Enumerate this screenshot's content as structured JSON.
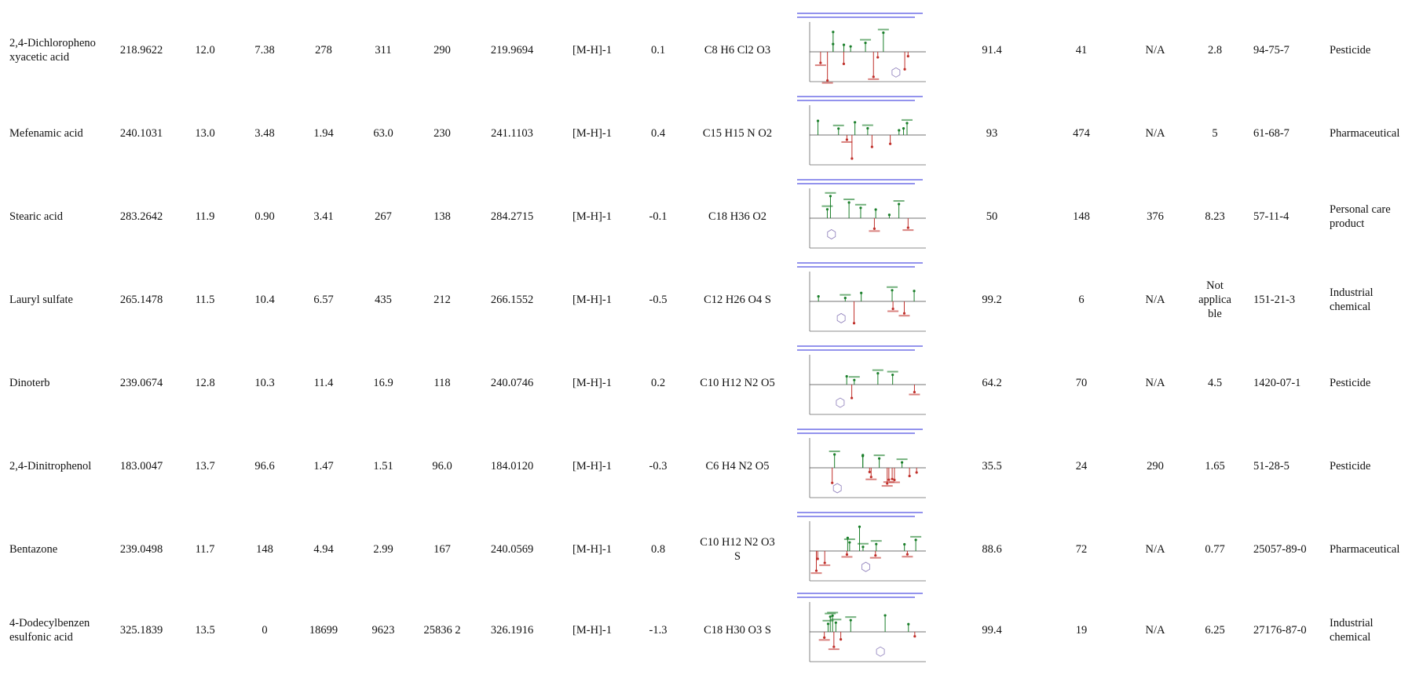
{
  "rows": [
    {
      "name": "2,4-Dichloropheno xyacetic acid",
      "mz": "218.9622",
      "rt": "12.0",
      "a": "7.38",
      "b": "278",
      "c": "311",
      "d": "290",
      "mass": "219.9694",
      "adduct": "[M-H]-1",
      "err": "0.1",
      "formula": "C8 H6 Cl2 O3",
      "score": "91.4",
      "f1": "41",
      "f2": "N/A",
      "f3": "2.8",
      "cas": "94-75-7",
      "category": "Pesticide"
    },
    {
      "name": "Mefenamic acid",
      "mz": "240.1031",
      "rt": "13.0",
      "a": "3.48",
      "b": "1.94",
      "c": "63.0",
      "d": "230",
      "mass": "241.1103",
      "adduct": "[M-H]-1",
      "err": "0.4",
      "formula": "C15 H15 N O2",
      "score": "93",
      "f1": "474",
      "f2": "N/A",
      "f3": "5",
      "cas": "61-68-7",
      "category": "Pharmaceutical"
    },
    {
      "name": "Stearic acid",
      "mz": "283.2642",
      "rt": "11.9",
      "a": "0.90",
      "b": "3.41",
      "c": "267",
      "d": "138",
      "mass": "284.2715",
      "adduct": "[M-H]-1",
      "err": "-0.1",
      "formula": "C18 H36 O2",
      "score": "50",
      "f1": "148",
      "f2": "376",
      "f3": "8.23",
      "cas": "57-11-4",
      "category": "Personal care product"
    },
    {
      "name": "Lauryl sulfate",
      "mz": "265.1478",
      "rt": "11.5",
      "a": "10.4",
      "b": "6.57",
      "c": "435",
      "d": "212",
      "mass": "266.1552",
      "adduct": "[M-H]-1",
      "err": "-0.5",
      "formula": "C12 H26 O4 S",
      "score": "99.2",
      "f1": "6",
      "f2": "N/A",
      "f3": "Not applica ble",
      "cas": "151-21-3",
      "category": "Industrial chemical"
    },
    {
      "name": "Dinoterb",
      "mz": "239.0674",
      "rt": "12.8",
      "a": "10.3",
      "b": "11.4",
      "c": "16.9",
      "d": "118",
      "mass": "240.0746",
      "adduct": "[M-H]-1",
      "err": "0.2",
      "formula": "C10 H12 N2 O5",
      "score": "64.2",
      "f1": "70",
      "f2": "N/A",
      "f3": "4.5",
      "cas": "1420-07-1",
      "category": "Pesticide"
    },
    {
      "name": "2,4-Dinitrophenol",
      "mz": "183.0047",
      "rt": "13.7",
      "a": "96.6",
      "b": "1.47",
      "c": "1.51",
      "d": "96.0",
      "mass": "184.0120",
      "adduct": "[M-H]-1",
      "err": "-0.3",
      "formula": "C6 H4 N2 O5",
      "score": "35.5",
      "f1": "24",
      "f2": "290",
      "f3": "1.65",
      "cas": "51-28-5",
      "category": "Pesticide"
    },
    {
      "name": "Bentazone",
      "mz": "239.0498",
      "rt": "11.7",
      "a": "148",
      "b": "4.94",
      "c": "2.99",
      "d": "167",
      "mass": "240.0569",
      "adduct": "[M-H]-1",
      "err": "0.8",
      "formula": "C10 H12 N2 O3 S",
      "score": "88.6",
      "f1": "72",
      "f2": "N/A",
      "f3": "0.77",
      "cas": "25057-89-0",
      "category": "Pharmaceutical"
    },
    {
      "name": "4-Dodecylbenzen esulfonic acid",
      "mz": "325.1839",
      "rt": "13.5",
      "a": "0",
      "b": "18699",
      "c": "9623",
      "d": "25836 2",
      "mass": "326.1916",
      "adduct": "[M-H]-1",
      "err": "-1.3",
      "formula": "C18 H30 O3 S",
      "score": "99.4",
      "f1": "19",
      "f2": "N/A",
      "f3": "6.25",
      "cas": "27176-87-0",
      "category": "Industrial chemical"
    }
  ],
  "colors": {
    "text": "#111111",
    "sample": "#1a7f2a",
    "reference": "#c0302b",
    "header": "#3a3adf",
    "axis": "#666666"
  }
}
